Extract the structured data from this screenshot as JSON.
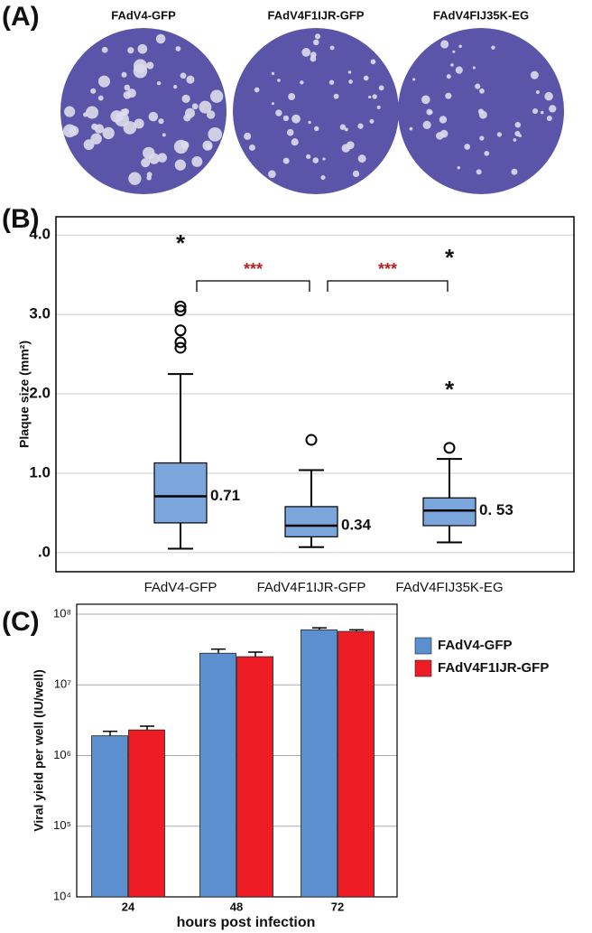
{
  "panel_a": {
    "label": "(A)",
    "titles": [
      "FAdV4-GFP",
      "FAdV4F1IJR-GFP",
      "FAdV4FIJ35K-EG"
    ],
    "dish_color": "#5a55a8"
  },
  "chart_data": [
    {
      "type": "box",
      "panel_label": "(B)",
      "y_label": "Plaque size (mm²)",
      "categories": [
        "FAdV4-GFP",
        "FAdV4F1IJR-GFP",
        "FAdV4FIJ35K-EG"
      ],
      "whisker_low": [
        0.05,
        0.07,
        0.13
      ],
      "q1": [
        0.375,
        0.2,
        0.34
      ],
      "median": [
        0.71,
        0.34,
        0.53
      ],
      "median_labels": [
        "0.71",
        "0.34",
        "0. 53"
      ],
      "q3": [
        1.13,
        0.58,
        0.69
      ],
      "whisker_high": [
        2.25,
        1.04,
        1.18
      ],
      "outliers": [
        [
          2.58,
          2.65,
          2.8,
          3.05,
          3.1
        ],
        [
          1.42
        ],
        [
          1.32
        ]
      ],
      "extremes": [
        [
          3.92
        ],
        [],
        [
          2.08,
          3.74
        ]
      ],
      "box_color": "#7aa6dc",
      "significance": [
        {
          "from": 0,
          "to": 1,
          "label": "***"
        },
        {
          "from": 1,
          "to": 2,
          "label": "***"
        }
      ],
      "significance_color": "#b22222",
      "ylim": [
        -0.24,
        4.23
      ],
      "yticks": [
        {
          "value": 0,
          "label": ".0"
        },
        {
          "value": 1,
          "label": "1.0"
        },
        {
          "value": 2,
          "label": "2.0"
        },
        {
          "value": 3,
          "label": "3.0"
        },
        {
          "value": 4,
          "label": "4.0"
        }
      ],
      "grid": true
    },
    {
      "type": "bar",
      "panel_label": "(C)",
      "y_label": "Viral yield per well (IU/well)",
      "x_label": "hours post infection",
      "categories": [
        "24",
        "48",
        "72"
      ],
      "log_scale": true,
      "grid": true,
      "legend": "right",
      "series": [
        {
          "name": "FAdV4-GFP",
          "color": "#5b8fd0",
          "values": [
            1900000,
            28000000,
            60000000
          ],
          "errors": [
            300000,
            4000000,
            4000000
          ]
        },
        {
          "name": "FAdV4F1IJR-GFP",
          "color": "#ee1c24",
          "values": [
            2300000,
            25000000,
            57000000
          ],
          "errors": [
            300000,
            4000000,
            3000000
          ]
        }
      ],
      "ylim": [
        10000,
        138000000
      ],
      "yticks": [
        {
          "value": 10000,
          "label": "10⁴"
        },
        {
          "value": 100000,
          "label": "10⁵"
        },
        {
          "value": 1000000,
          "label": "10⁶"
        },
        {
          "value": 10000000,
          "label": "10⁷"
        },
        {
          "value": 100000000,
          "label": "10⁸"
        }
      ]
    }
  ]
}
